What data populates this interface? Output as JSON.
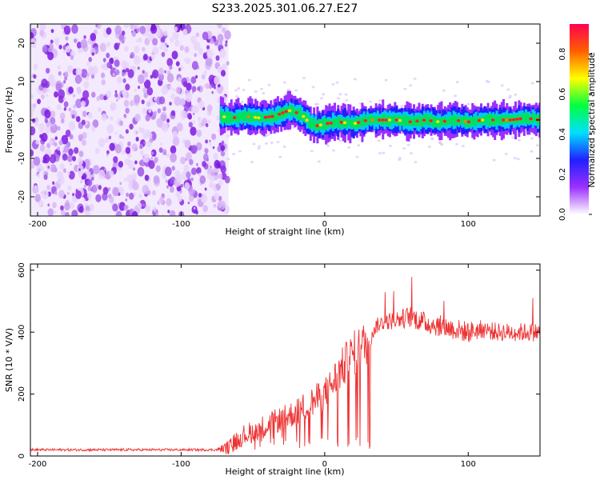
{
  "title": "S233.2025.301.06.27.E27",
  "chart_data": [
    {
      "type": "heatmap",
      "xlabel": "Height of straight line (km)",
      "ylabel": "Frequency (Hz)",
      "xlim": [
        -205,
        150
      ],
      "ylim": [
        -25,
        25
      ],
      "xticks": [
        -200,
        -100,
        0,
        100
      ],
      "yticks": [
        -20,
        -10,
        0,
        10,
        20
      ],
      "noise_region_x": [
        -205,
        -67
      ],
      "signal_region_x": [
        -73,
        150
      ],
      "frequency_track": {
        "x": [
          -73,
          -65,
          -55,
          -45,
          -35,
          -25,
          -20,
          -15,
          -10,
          -5,
          0,
          10,
          20,
          30,
          40,
          50,
          60,
          70,
          80,
          90,
          100,
          110,
          120,
          130,
          140,
          150
        ],
        "y": [
          1,
          0.5,
          1,
          0.5,
          1,
          2.5,
          2,
          1,
          -1,
          -1.5,
          -1,
          -0.5,
          -1,
          0,
          0,
          0,
          -0.5,
          0,
          -0.5,
          0,
          -0.5,
          0,
          0,
          0,
          0.5,
          0
        ]
      },
      "colorbar": {
        "label": "Normalized spectral amplitude",
        "range": [
          0,
          0.95
        ],
        "ticks": [
          "0.0",
          "0.2",
          "0.4",
          "0.6",
          "0.8"
        ],
        "colors": [
          "#ffffff",
          "#9b30ff",
          "#2020ff",
          "#00e0ff",
          "#00ff40",
          "#ffff00",
          "#ff6000",
          "#ff0050"
        ]
      }
    },
    {
      "type": "line",
      "xlabel": "Height of straight line (km)",
      "ylabel": "SNR (10 * V/V)",
      "xlim": [
        -205,
        150
      ],
      "ylim": [
        0,
        620
      ],
      "xticks": [
        -200,
        -100,
        0,
        100
      ],
      "yticks": [
        0,
        200,
        400,
        600
      ],
      "series_color": "#ee3333",
      "x": [
        -205,
        -190,
        -170,
        -150,
        -130,
        -110,
        -90,
        -75,
        -65,
        -60,
        -50,
        -40,
        -30,
        -20,
        -10,
        0,
        5,
        10,
        15,
        20,
        25,
        30,
        33,
        36,
        40,
        50,
        60,
        70,
        80,
        90,
        100,
        110,
        120,
        130,
        140,
        150
      ],
      "y": [
        20,
        20,
        20,
        20,
        20,
        20,
        20,
        20,
        30,
        60,
        80,
        100,
        120,
        140,
        170,
        200,
        230,
        270,
        300,
        330,
        350,
        370,
        400,
        420,
        430,
        440,
        450,
        430,
        420,
        410,
        400,
        410,
        400,
        400,
        400,
        400
      ],
      "spread": [
        8,
        8,
        8,
        8,
        8,
        8,
        8,
        8,
        60,
        70,
        70,
        80,
        80,
        90,
        100,
        110,
        120,
        130,
        140,
        150,
        150,
        150,
        60,
        50,
        50,
        60,
        70,
        70,
        70,
        70,
        70,
        60,
        60,
        60,
        60,
        60
      ]
    }
  ]
}
